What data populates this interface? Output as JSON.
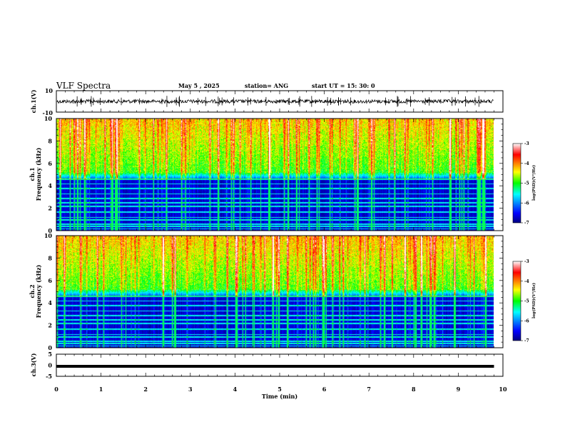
{
  "header": {
    "title": "VLF Spectra",
    "date": "May 5 , 2025",
    "station": "station= ANG",
    "start": "start UT = 15: 30: 0"
  },
  "chart_data": [
    {
      "type": "line",
      "name": "ch1-waveform",
      "ylabel": "ch.1(V)",
      "ylim": [
        -10,
        10
      ],
      "yticklabels": [
        "10",
        "-10"
      ],
      "xlim": [
        0,
        10
      ],
      "baseline": 0,
      "color": "#000000"
    },
    {
      "type": "heatmap",
      "name": "ch1-spectrogram",
      "ylabel": "ch.1",
      "ylabel2": "Frequency (kHz)",
      "ylim": [
        0,
        10
      ],
      "yticks": [
        0,
        2,
        4,
        6,
        8,
        10
      ],
      "xlim": [
        0,
        9.8
      ],
      "colorbar": {
        "label": "log(PSD)(V²/Hz)",
        "range": [
          -7,
          -3
        ],
        "ticks": [
          -3,
          -4,
          -5,
          -6,
          -7
        ]
      }
    },
    {
      "type": "heatmap",
      "name": "ch2-spectrogram",
      "ylabel": "ch.2",
      "ylabel2": "Frequency (kHz)",
      "ylim": [
        0,
        10
      ],
      "yticks": [
        0,
        2,
        4,
        6,
        8,
        10
      ],
      "xlim": [
        0,
        9.8
      ],
      "colorbar": {
        "label": "log(PSD)(V²/Hz)",
        "range": [
          -7,
          -3
        ],
        "ticks": [
          -3,
          -4,
          -5,
          -6,
          -7
        ]
      }
    },
    {
      "type": "line",
      "name": "ch3-signal",
      "ylabel": "ch.3(V)",
      "ylim": [
        -5,
        5
      ],
      "yticks": [
        5,
        0,
        -5
      ],
      "xlim": [
        0,
        10
      ],
      "values_constant": -0.5,
      "color": "#000000"
    }
  ],
  "xaxis": {
    "label": "Time (min)",
    "ticks": [
      0,
      1,
      2,
      3,
      4,
      5,
      6,
      7,
      8,
      9,
      10
    ]
  },
  "colors": {
    "low": "#000080",
    "mid": "#00ff00",
    "high": "#ff0000"
  }
}
